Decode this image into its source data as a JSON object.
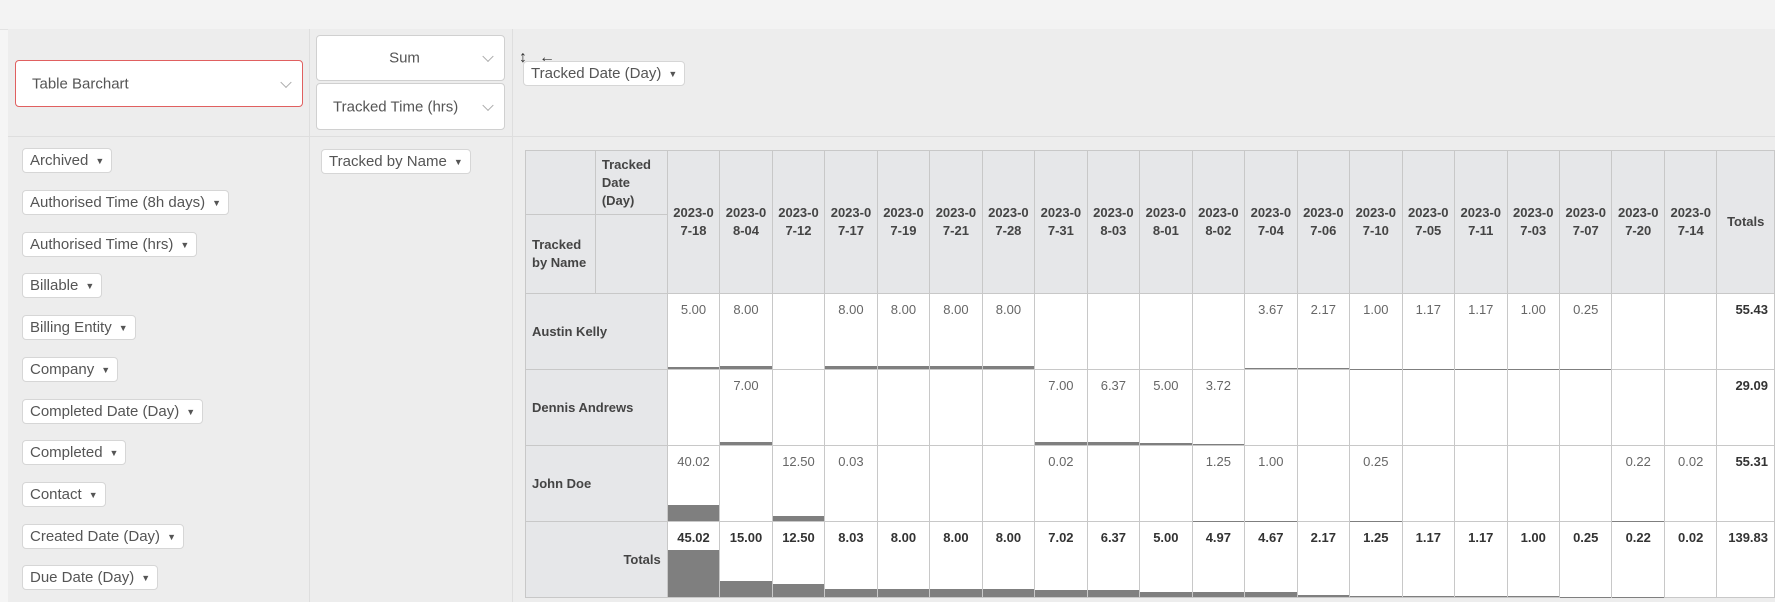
{
  "renderer": {
    "label": "Table Barchart"
  },
  "aggregator": {
    "label": "Sum",
    "attribute": "Tracked Time (hrs)"
  },
  "controls": {
    "row_order": "↕",
    "col_order": "←"
  },
  "columns_attr": "Tracked Date (Day)",
  "rows_attr": "Tracked by Name",
  "unused_attrs": [
    "Archived",
    "Authorised Time (8h days)",
    "Authorised Time (hrs)",
    "Billable",
    "Billing Entity",
    "Company",
    "Completed Date (Day)",
    "Completed",
    "Contact",
    "Created Date (Day)",
    "Due Date (Day)"
  ],
  "table": {
    "col_axis_label": "Tracked Date (Day)",
    "row_axis_label": "Tracked by Name",
    "totals_label": "Totals",
    "grand_total": "139.83",
    "dates": [
      "2023-07-18",
      "2023-08-04",
      "2023-07-12",
      "2023-07-17",
      "2023-07-19",
      "2023-07-21",
      "2023-07-28",
      "2023-07-31",
      "2023-08-03",
      "2023-08-01",
      "2023-08-02",
      "2023-07-04",
      "2023-07-06",
      "2023-07-10",
      "2023-07-05",
      "2023-07-11",
      "2023-07-03",
      "2023-07-07",
      "2023-07-20",
      "2023-07-14"
    ],
    "rows": [
      {
        "name": "Austin Kelly",
        "total": "55.43",
        "values": [
          "5.00",
          "8.00",
          "",
          "8.00",
          "8.00",
          "8.00",
          "8.00",
          "",
          "",
          "",
          "",
          "3.67",
          "2.17",
          "1.00",
          "1.17",
          "1.17",
          "1.00",
          "0.25",
          "",
          ""
        ]
      },
      {
        "name": "Dennis Andrews",
        "total": "29.09",
        "values": [
          "",
          "7.00",
          "",
          "",
          "",
          "",
          "",
          "7.00",
          "6.37",
          "5.00",
          "3.72",
          "",
          "",
          "",
          "",
          "",
          "",
          "",
          "",
          ""
        ]
      },
      {
        "name": "John Doe",
        "total": "55.31",
        "values": [
          "40.02",
          "",
          "12.50",
          "0.03",
          "",
          "",
          "",
          "0.02",
          "",
          "",
          "1.25",
          "1.00",
          "",
          "0.25",
          "",
          "",
          "",
          "",
          "0.22",
          "0.02"
        ]
      }
    ],
    "col_totals": [
      "45.02",
      "15.00",
      "12.50",
      "8.03",
      "8.00",
      "8.00",
      "8.00",
      "7.02",
      "6.37",
      "5.00",
      "4.97",
      "4.67",
      "2.17",
      "1.25",
      "1.17",
      "1.17",
      "1.00",
      "0.25",
      "0.22",
      "0.02"
    ]
  },
  "colors": {
    "bar": "#7f7f7f",
    "header_bg": "#e6e7e9",
    "renderer_border": "#e06060"
  }
}
